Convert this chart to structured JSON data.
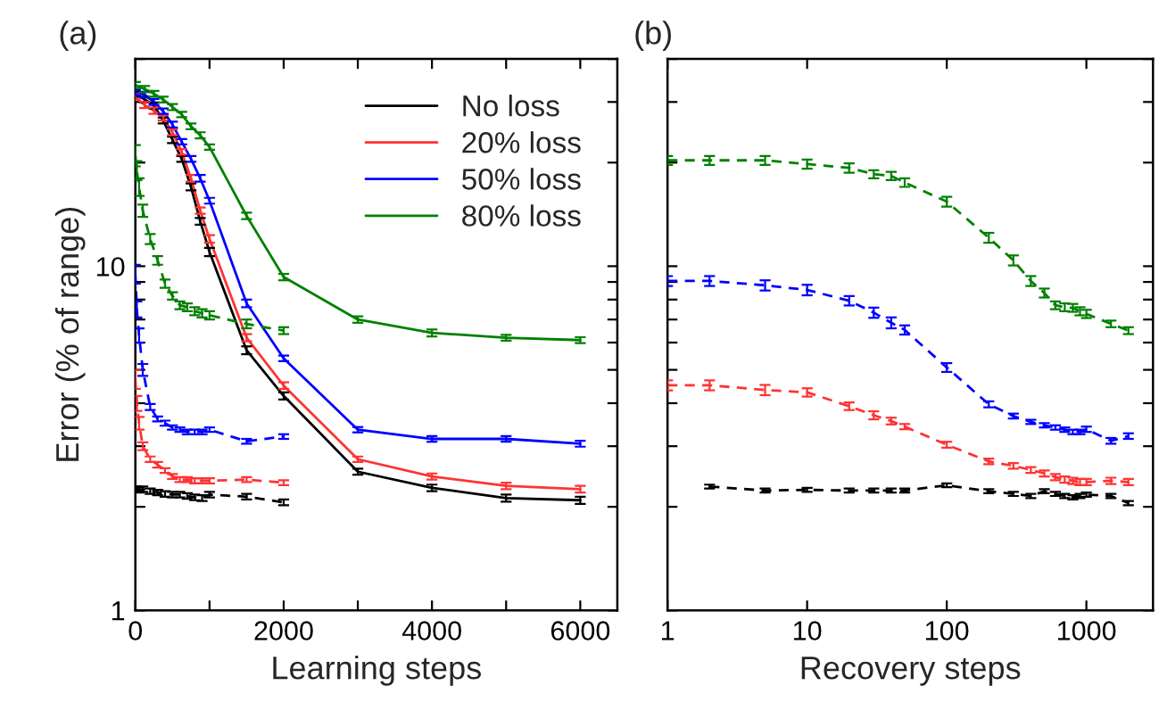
{
  "chart_data": [
    {
      "type": "line",
      "title": "(a)",
      "xlabel": "Learning steps",
      "ylabel": "Error (% of range)",
      "log": "y",
      "legend": "top right",
      "xlim": [
        0,
        6500
      ],
      "xticks": [
        0,
        {
          "value": 1000,
          "label": null
        },
        2000,
        {
          "value": 3000,
          "label": null
        },
        4000,
        {
          "value": 5000,
          "label": null
        },
        6000
      ],
      "ylim": [
        1,
        40
      ],
      "yticks": [
        1,
        {
          "value": 2,
          "label": null
        },
        {
          "value": 3,
          "label": null
        },
        {
          "value": 4,
          "label": null
        },
        {
          "value": 5,
          "label": null
        },
        {
          "value": 6,
          "label": null
        },
        {
          "value": 7,
          "label": null
        },
        {
          "value": 8,
          "label": null
        },
        {
          "value": 9,
          "label": null
        },
        10,
        {
          "value": 20,
          "label": null
        },
        {
          "value": 30,
          "label": null
        },
        {
          "value": 40,
          "label": null
        }
      ],
      "series": [
        {
          "name": "No loss",
          "color": "#000000",
          "line_style": "solid",
          "x": [
            0,
            125,
            250,
            375,
            500,
            625,
            750,
            875,
            1000,
            1500,
            2000,
            3000,
            4000,
            5000,
            6000
          ],
          "values": [
            31.7,
            30.5,
            29.3,
            26.5,
            23.3,
            20.5,
            17,
            13.5,
            11,
            5.7,
            4.2,
            2.53,
            2.27,
            2.12,
            2.09
          ],
          "errors": [
            0.6,
            0.6,
            0.6,
            0.5,
            0.5,
            0.4,
            0.4,
            0.3,
            0.3,
            0.15,
            0.1,
            0.05,
            0.05,
            0.05,
            0.05
          ]
        },
        {
          "name": "20% loss",
          "color": "#ff3333",
          "line_style": "solid",
          "x": [
            0,
            125,
            250,
            375,
            500,
            625,
            750,
            875,
            1000,
            1500,
            2000,
            3000,
            4000,
            5000,
            6000
          ],
          "values": [
            31,
            29.4,
            28.3,
            27,
            24.5,
            21.5,
            18,
            14.5,
            12,
            6.2,
            4.5,
            2.75,
            2.45,
            2.3,
            2.25
          ],
          "errors": [
            0.6,
            0.6,
            0.6,
            0.5,
            0.5,
            0.4,
            0.4,
            0.3,
            0.3,
            0.15,
            0.1,
            0.05,
            0.05,
            0.05,
            0.05
          ]
        },
        {
          "name": "50% loss",
          "color": "#0000ff",
          "line_style": "solid",
          "x": [
            0,
            125,
            250,
            375,
            500,
            625,
            750,
            875,
            1000,
            1500,
            2000,
            3000,
            4000,
            5000,
            6000
          ],
          "values": [
            32,
            31.5,
            30,
            28.2,
            25.8,
            23,
            20.5,
            18,
            15.5,
            7.8,
            5.4,
            3.35,
            3.15,
            3.15,
            3.05
          ],
          "errors": [
            0.6,
            0.6,
            0.6,
            0.5,
            0.5,
            0.4,
            0.4,
            0.4,
            0.3,
            0.2,
            0.1,
            0.06,
            0.06,
            0.06,
            0.06
          ]
        },
        {
          "name": "80% loss",
          "color": "#008000",
          "line_style": "solid",
          "x": [
            0,
            125,
            250,
            375,
            500,
            625,
            750,
            875,
            1000,
            1500,
            2000,
            3000,
            4000,
            5000,
            6000
          ],
          "values": [
            33.6,
            32.7,
            31.7,
            30.5,
            29,
            27.6,
            25.5,
            24,
            22.2,
            14,
            9.3,
            7,
            6.4,
            6.2,
            6.1
          ],
          "errors": [
            0.7,
            0.7,
            0.6,
            0.6,
            0.6,
            0.5,
            0.5,
            0.5,
            0.4,
            0.3,
            0.2,
            0.15,
            0.15,
            0.12,
            0.12
          ]
        },
        {
          "color": "#000000",
          "line_style": "dashed",
          "x": [
            0,
            20,
            50,
            100,
            200,
            300,
            400,
            500,
            600,
            700,
            800,
            900,
            1000,
            1500,
            2000
          ],
          "values": [
            2.25,
            2.25,
            2.24,
            2.25,
            2.22,
            2.2,
            2.18,
            2.17,
            2.17,
            2.15,
            2.13,
            2.12,
            2.17,
            2.14,
            2.06
          ],
          "errors": [
            0.04,
            0.04,
            0.04,
            0.04,
            0.04,
            0.04,
            0.04,
            0.04,
            0.04,
            0.04,
            0.04,
            0.04,
            0.04,
            0.04,
            0.04
          ]
        },
        {
          "color": "#ff3333",
          "line_style": "dashed",
          "x": [
            0,
            20,
            50,
            100,
            200,
            300,
            400,
            500,
            600,
            700,
            800,
            900,
            1000,
            1500,
            2000
          ],
          "values": [
            4.7,
            4.0,
            3.5,
            3.0,
            2.75,
            2.65,
            2.55,
            2.45,
            2.4,
            2.4,
            2.38,
            2.38,
            2.38,
            2.4,
            2.35
          ],
          "errors": [
            0.3,
            0.2,
            0.15,
            0.08,
            0.05,
            0.05,
            0.04,
            0.04,
            0.04,
            0.04,
            0.04,
            0.04,
            0.04,
            0.04,
            0.04
          ]
        },
        {
          "color": "#0000ff",
          "line_style": "dashed",
          "x": [
            0,
            20,
            50,
            100,
            200,
            300,
            400,
            500,
            600,
            700,
            800,
            900,
            1000,
            1500,
            2000
          ],
          "values": [
            9.5,
            7.5,
            6.3,
            5.0,
            3.9,
            3.6,
            3.5,
            3.4,
            3.35,
            3.3,
            3.3,
            3.3,
            3.35,
            3.1,
            3.2
          ],
          "errors": [
            0.6,
            0.4,
            0.3,
            0.2,
            0.08,
            0.06,
            0.06,
            0.05,
            0.05,
            0.05,
            0.05,
            0.05,
            0.05,
            0.05,
            0.05
          ]
        },
        {
          "color": "#008000",
          "line_style": "dashed",
          "x": [
            0,
            20,
            50,
            100,
            200,
            300,
            400,
            500,
            600,
            700,
            800,
            900,
            1000,
            1500,
            2000
          ],
          "values": [
            21,
            19,
            17,
            14.5,
            12,
            10.4,
            8.9,
            8.2,
            7.7,
            7.6,
            7.4,
            7.3,
            7.2,
            6.8,
            6.5
          ],
          "errors": [
            1.5,
            1.2,
            1,
            0.6,
            0.4,
            0.3,
            0.25,
            0.2,
            0.2,
            0.2,
            0.2,
            0.2,
            0.2,
            0.2,
            0.15
          ]
        }
      ]
    },
    {
      "type": "line",
      "title": "(b)",
      "xlabel": "Recovery steps",
      "log": "xy",
      "tick_labels": "x",
      "xlim": [
        1,
        3000
      ],
      "xticks": [
        1,
        10,
        100,
        1000
      ],
      "ylim": [
        1,
        40
      ],
      "yticks": [
        1,
        {
          "value": 2,
          "label": null
        },
        {
          "value": 3,
          "label": null
        },
        {
          "value": 4,
          "label": null
        },
        {
          "value": 5,
          "label": null
        },
        {
          "value": 6,
          "label": null
        },
        {
          "value": 7,
          "label": null
        },
        {
          "value": 8,
          "label": null
        },
        {
          "value": 9,
          "label": null
        },
        10,
        {
          "value": 20,
          "label": null
        },
        {
          "value": 30,
          "label": null
        },
        {
          "value": 40,
          "label": null
        }
      ],
      "series": [
        {
          "color": "#000000",
          "line_style": "dashed",
          "x": [
            2,
            5,
            10,
            20,
            30,
            40,
            50,
            100,
            200,
            300,
            400,
            500,
            600,
            700,
            800,
            900,
            1000,
            1500,
            2000
          ],
          "values": [
            2.29,
            2.23,
            2.24,
            2.23,
            2.23,
            2.23,
            2.23,
            2.31,
            2.22,
            2.18,
            2.15,
            2.22,
            2.18,
            2.15,
            2.13,
            2.15,
            2.17,
            2.15,
            2.05
          ],
          "errors": [
            0.03,
            0.03,
            0.03,
            0.03,
            0.03,
            0.03,
            0.03,
            0.03,
            0.03,
            0.03,
            0.03,
            0.03,
            0.03,
            0.03,
            0.03,
            0.03,
            0.03,
            0.03,
            0.03
          ]
        },
        {
          "color": "#ff3333",
          "line_style": "dashed",
          "x": [
            1,
            2,
            5,
            10,
            20,
            30,
            40,
            50,
            100,
            200,
            300,
            400,
            500,
            600,
            700,
            800,
            900,
            1000,
            1500,
            2000
          ],
          "values": [
            4.51,
            4.51,
            4.37,
            4.3,
            3.92,
            3.69,
            3.55,
            3.42,
            3.03,
            2.71,
            2.63,
            2.56,
            2.5,
            2.44,
            2.4,
            2.38,
            2.36,
            2.36,
            2.38,
            2.36
          ],
          "errors": [
            0.15,
            0.15,
            0.15,
            0.12,
            0.1,
            0.1,
            0.08,
            0.06,
            0.06,
            0.05,
            0.05,
            0.05,
            0.05,
            0.05,
            0.05,
            0.05,
            0.05,
            0.05,
            0.05,
            0.05
          ]
        },
        {
          "color": "#0000ff",
          "line_style": "dashed",
          "x": [
            1,
            2,
            5,
            10,
            20,
            30,
            40,
            50,
            100,
            200,
            300,
            400,
            500,
            600,
            700,
            800,
            900,
            1000,
            1500,
            2000
          ],
          "values": [
            9.06,
            9.06,
            8.8,
            8.53,
            7.94,
            7.33,
            6.85,
            6.53,
            5.08,
            3.97,
            3.67,
            3.53,
            3.45,
            3.4,
            3.35,
            3.3,
            3.3,
            3.36,
            3.11,
            3.21
          ],
          "errors": [
            0.3,
            0.3,
            0.3,
            0.3,
            0.25,
            0.25,
            0.25,
            0.2,
            0.15,
            0.08,
            0.06,
            0.05,
            0.05,
            0.05,
            0.05,
            0.05,
            0.05,
            0.06,
            0.06,
            0.06
          ]
        },
        {
          "color": "#008000",
          "line_style": "dashed",
          "x": [
            1,
            2,
            5,
            10,
            20,
            30,
            40,
            50,
            100,
            200,
            300,
            400,
            500,
            600,
            700,
            800,
            900,
            1000,
            1500,
            2000
          ],
          "values": [
            20.3,
            20.3,
            20.3,
            19.8,
            19.3,
            18.5,
            18.3,
            17.5,
            15.4,
            12.1,
            10.4,
            9.06,
            8.36,
            7.7,
            7.6,
            7.57,
            7.4,
            7.27,
            6.8,
            6.5
          ],
          "errors": [
            0.6,
            0.6,
            0.6,
            0.6,
            0.6,
            0.5,
            0.5,
            0.5,
            0.5,
            0.4,
            0.35,
            0.3,
            0.25,
            0.2,
            0.2,
            0.2,
            0.2,
            0.2,
            0.15,
            0.15
          ]
        }
      ]
    }
  ]
}
